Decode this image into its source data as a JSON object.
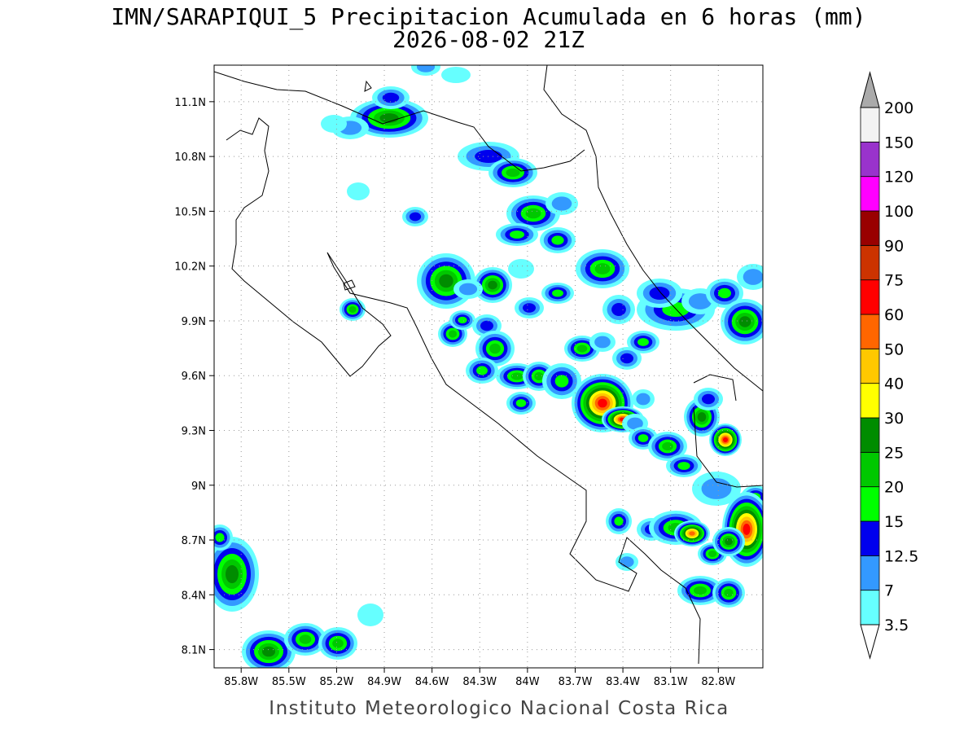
{
  "map": {
    "title": "IMN/SARAPIQUI_5 Precipitacion Acumulada en 6 horas (mm)",
    "subtitle": "2026-08-02 21Z",
    "footer": "Instituto Meteorologico Nacional Costa Rica",
    "lon_lim": [
      -85.97,
      -82.52
    ],
    "lat_lim": [
      8.0,
      11.3
    ],
    "lon_ticks": [
      {
        "value": -85.8,
        "label": "85.8W"
      },
      {
        "value": -85.5,
        "label": "85.5W"
      },
      {
        "value": -85.2,
        "label": "85.2W"
      },
      {
        "value": -84.9,
        "label": "84.9W"
      },
      {
        "value": -84.6,
        "label": "84.6W"
      },
      {
        "value": -84.3,
        "label": "84.3W"
      },
      {
        "value": -84.0,
        "label": "84W"
      },
      {
        "value": -83.7,
        "label": "83.7W"
      },
      {
        "value": -83.4,
        "label": "83.4W"
      },
      {
        "value": -83.1,
        "label": "83.1W"
      },
      {
        "value": -82.8,
        "label": "82.8W"
      }
    ],
    "lat_ticks": [
      {
        "value": 8.1,
        "label": "8.1N"
      },
      {
        "value": 8.4,
        "label": "8.4N"
      },
      {
        "value": 8.7,
        "label": "8.7N"
      },
      {
        "value": 9.0,
        "label": "9N"
      },
      {
        "value": 9.3,
        "label": "9.3N"
      },
      {
        "value": 9.6,
        "label": "9.6N"
      },
      {
        "value": 9.9,
        "label": "9.9N"
      },
      {
        "value": 10.2,
        "label": "10.2N"
      },
      {
        "value": 10.5,
        "label": "10.5N"
      },
      {
        "value": 10.8,
        "label": "10.8N"
      },
      {
        "value": 11.1,
        "label": "11.1N"
      }
    ],
    "grid": true,
    "colorbar": {
      "levels": [
        3.5,
        7,
        12.5,
        15,
        20,
        25,
        30,
        40,
        50,
        60,
        75,
        90,
        100,
        120,
        150,
        200
      ],
      "colors": [
        "#66ffff",
        "#3399ff",
        "#0000ee",
        "#00ff00",
        "#00c800",
        "#008c00",
        "#ffff00",
        "#ffc800",
        "#ff6600",
        "#ff0000",
        "#cc3300",
        "#990000",
        "#ff00ff",
        "#9933cc",
        "#f2f2f2"
      ],
      "under_color": "#ffffff",
      "over_color": "#aaaaaa"
    }
  }
}
